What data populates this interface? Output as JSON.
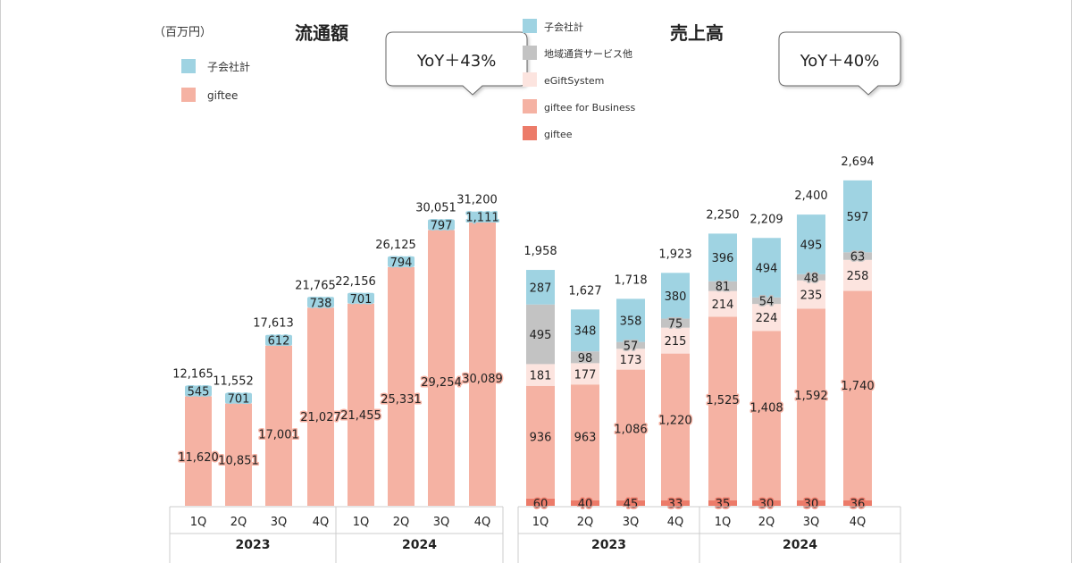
{
  "unit_label": "（百万円）",
  "colors": {
    "subsidiary": "#9fd3e2",
    "regional": "#c3c3c3",
    "egift": "#fce4df",
    "business": "#f5b2a3",
    "giftee": "#ec7b69",
    "gmv": "#f5b2a3",
    "axis": "#cccccc"
  },
  "chart_data": [
    {
      "type": "bar",
      "stacked": true,
      "title": "流通額",
      "categories": [
        "1Q",
        "2Q",
        "3Q",
        "4Q",
        "1Q",
        "2Q",
        "3Q",
        "4Q"
      ],
      "groups": [
        "2023",
        "2024"
      ],
      "series": [
        {
          "name": "giftee",
          "key": "gmv",
          "values": [
            11620,
            10851,
            17001,
            21027,
            21455,
            25331,
            29254,
            30089
          ]
        },
        {
          "name": "子会社計",
          "key": "subsidiary",
          "values": [
            545,
            701,
            612,
            738,
            701,
            794,
            797,
            1111
          ]
        }
      ],
      "value_labels": {
        "gmv": [
          "11,620",
          "10,851",
          "17,001",
          "21,027",
          "21,455",
          "25,331",
          "29,254",
          "30,089"
        ],
        "subsidiary": [
          "545",
          "701",
          "612",
          "738",
          "701",
          "794",
          "797",
          "1,111"
        ]
      },
      "totals": [
        12165,
        11552,
        17613,
        21765,
        22156,
        26125,
        30051,
        31200
      ],
      "total_labels": [
        "12,165",
        "11,552",
        "17,613",
        "21,765",
        "22,156",
        "26,125",
        "30,051",
        "31,200"
      ],
      "legend": [
        "子会社計",
        "giftee"
      ],
      "callout": "YoY＋43%",
      "ylim": [
        0,
        33000
      ]
    },
    {
      "type": "bar",
      "stacked": true,
      "title": "売上高",
      "categories": [
        "1Q",
        "2Q",
        "3Q",
        "4Q",
        "1Q",
        "2Q",
        "3Q",
        "4Q"
      ],
      "groups": [
        "2023",
        "2024"
      ],
      "series": [
        {
          "name": "giftee",
          "key": "giftee",
          "values": [
            60,
            40,
            45,
            33,
            35,
            30,
            30,
            36
          ]
        },
        {
          "name": "giftee for Business",
          "key": "business",
          "values": [
            936,
            963,
            1086,
            1220,
            1525,
            1408,
            1592,
            1740
          ]
        },
        {
          "name": "eGiftSystem",
          "key": "egift",
          "values": [
            181,
            177,
            173,
            215,
            214,
            224,
            235,
            258
          ]
        },
        {
          "name": "地域通貨サービス他",
          "key": "regional",
          "values": [
            495,
            98,
            57,
            75,
            81,
            54,
            48,
            63
          ]
        },
        {
          "name": "子会社計",
          "key": "subsidiary",
          "values": [
            287,
            348,
            358,
            380,
            396,
            494,
            495,
            597
          ]
        }
      ],
      "value_labels": {
        "giftee": [
          "60",
          "40",
          "45",
          "33",
          "35",
          "30",
          "30",
          "36"
        ],
        "business": [
          "936",
          "963",
          "1,086",
          "1,220",
          "1,525",
          "1,408",
          "1,592",
          "1,740"
        ],
        "egift": [
          "181",
          "177",
          "173",
          "215",
          "214",
          "224",
          "235",
          "258"
        ],
        "regional": [
          "495",
          "98",
          "57",
          "75",
          "81",
          "54",
          "48",
          "63"
        ],
        "subsidiary": [
          "287",
          "348",
          "358",
          "380",
          "396",
          "494",
          "495",
          "597"
        ]
      },
      "totals": [
        1958,
        1627,
        1718,
        1923,
        2250,
        2209,
        2400,
        2694
      ],
      "total_labels": [
        "1,958",
        "1,627",
        "1,718",
        "1,923",
        "2,250",
        "2,209",
        "2,400",
        "2,694"
      ],
      "legend": [
        "子会社計",
        "地域通貨サービス他",
        "eGiftSystem",
        "giftee for Business",
        "giftee"
      ],
      "callout": "YoY＋40%",
      "ylim": [
        0,
        2900
      ]
    }
  ]
}
